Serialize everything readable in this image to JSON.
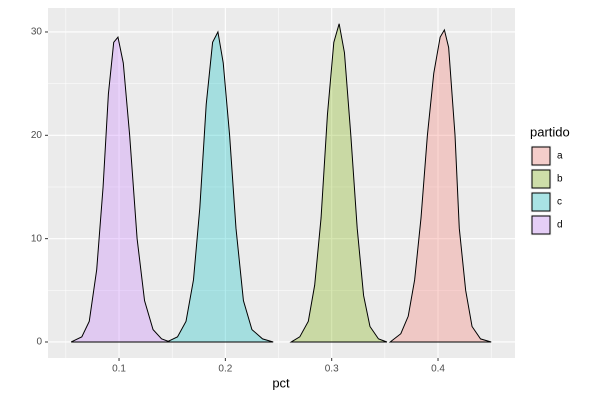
{
  "chart_data": {
    "type": "density",
    "x_label": "pct",
    "xlim": [
      0.0332,
      0.4724
    ],
    "xticks": [
      0.1,
      0.2,
      0.3,
      0.4
    ],
    "ylim": [
      -1.55,
      32.32
    ],
    "yticks": [
      0,
      10,
      20,
      30
    ],
    "grid": true,
    "legend_position": "right",
    "legend_title": "partido",
    "fill_opacity": 0.3,
    "outline_color": "#000000",
    "series": [
      {
        "name": "a",
        "color": "#F8766D",
        "x": [
          0.355,
          0.365,
          0.372,
          0.378,
          0.384,
          0.39,
          0.396,
          0.402,
          0.406,
          0.41,
          0.416,
          0.42,
          0.426,
          0.432,
          0.44,
          0.45
        ],
        "values": [
          0,
          0.8,
          2.5,
          6,
          12,
          20,
          26,
          29.5,
          30.2,
          28.5,
          20,
          11,
          5,
          1.5,
          0.3,
          0
        ]
      },
      {
        "name": "b",
        "color": "#7CAE00",
        "x": [
          0.262,
          0.27,
          0.278,
          0.284,
          0.29,
          0.296,
          0.302,
          0.307,
          0.312,
          0.318,
          0.324,
          0.33,
          0.336,
          0.344,
          0.352
        ],
        "values": [
          0,
          0.5,
          2,
          5.5,
          12,
          22,
          29,
          30.8,
          28,
          20,
          11,
          4.5,
          1.5,
          0.3,
          0
        ]
      },
      {
        "name": "c",
        "color": "#00BFC4",
        "x": [
          0.145,
          0.155,
          0.163,
          0.17,
          0.176,
          0.182,
          0.188,
          0.193,
          0.198,
          0.204,
          0.21,
          0.217,
          0.225,
          0.235,
          0.245
        ],
        "values": [
          0,
          0.5,
          2,
          6,
          13,
          23,
          29,
          30,
          27,
          20,
          11,
          4,
          1.2,
          0.3,
          0
        ]
      },
      {
        "name": "d",
        "color": "#C77CFF",
        "x": [
          0.055,
          0.065,
          0.072,
          0.079,
          0.085,
          0.09,
          0.095,
          0.099,
          0.104,
          0.11,
          0.117,
          0.124,
          0.132,
          0.14,
          0.148
        ],
        "values": [
          0,
          0.5,
          2,
          7,
          15,
          24,
          29,
          29.5,
          27,
          20,
          10,
          4,
          1.2,
          0.3,
          0
        ]
      }
    ]
  }
}
